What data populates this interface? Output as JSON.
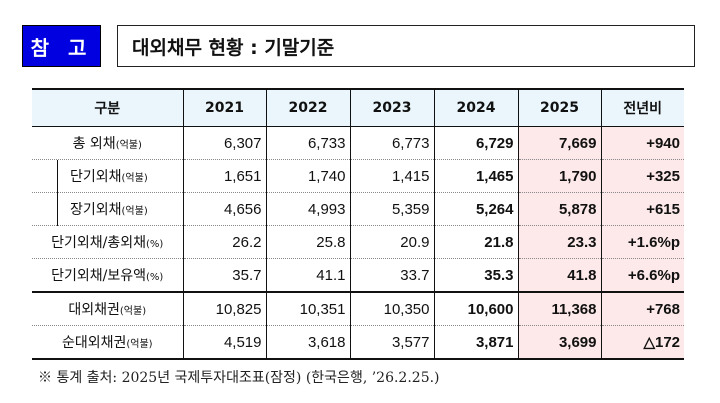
{
  "badge": "참 고",
  "title": "대외채무 현황 : 기말기준",
  "table": {
    "headers": [
      "구분",
      "2021",
      "2022",
      "2023",
      "2024",
      "2025",
      "전년비"
    ],
    "rows": [
      {
        "label": "총 외채",
        "unit": "(억불)",
        "sub": false,
        "values": [
          "6,307",
          "6,733",
          "6,773",
          "6,729",
          "7,669",
          "+940"
        ]
      },
      {
        "label": "단기외채",
        "unit": "(억불)",
        "sub": true,
        "values": [
          "1,651",
          "1,740",
          "1,415",
          "1,465",
          "1,790",
          "+325"
        ]
      },
      {
        "label": "장기외채",
        "unit": "(억불)",
        "sub": true,
        "values": [
          "4,656",
          "4,993",
          "5,359",
          "5,264",
          "5,878",
          "+615"
        ]
      },
      {
        "label": "단기외채/총외채",
        "unit": "(%)",
        "sub": false,
        "values": [
          "26.2",
          "25.8",
          "20.9",
          "21.8",
          "23.3",
          "+1.6%p"
        ]
      },
      {
        "label": "단기외채/보유액",
        "unit": "(%)",
        "sub": false,
        "values": [
          "35.7",
          "41.1",
          "33.7",
          "35.3",
          "41.8",
          "+6.6%p"
        ]
      },
      {
        "label": "대외채권",
        "unit": "(억불)",
        "sub": false,
        "values": [
          "10,825",
          "10,351",
          "10,350",
          "10,600",
          "11,368",
          "+768"
        ]
      },
      {
        "label": "순대외채권",
        "unit": "(억불)",
        "sub": false,
        "values": [
          "4,519",
          "3,618",
          "3,577",
          "3,871",
          "3,699",
          "△172"
        ]
      }
    ]
  },
  "note": "※ 통계 출처: 2025년 국제투자대조표(잠정) (한국은행, ’26.2.25.)",
  "colors": {
    "badge": "#0000e0",
    "header_bg": "#eaf6fb",
    "highlight_bg": "#fde9e9"
  }
}
